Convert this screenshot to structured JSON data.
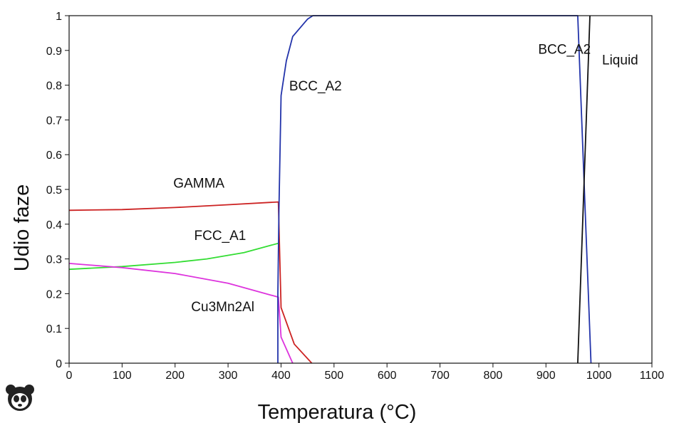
{
  "chart_data": {
    "type": "line",
    "title": "",
    "xlabel": "Temperatura (°C)",
    "ylabel": "Udio faze",
    "xlim": [
      0,
      1100
    ],
    "ylim": [
      0,
      1
    ],
    "x_ticks": [
      0,
      100,
      200,
      300,
      400,
      500,
      600,
      700,
      800,
      900,
      1000,
      1100
    ],
    "y_ticks": [
      0,
      0.1,
      0.2,
      0.3,
      0.4,
      0.5,
      0.6,
      0.7,
      0.8,
      0.9,
      1
    ],
    "grid": false,
    "series": [
      {
        "name": "GAMMA",
        "color": "#cc2222",
        "points": [
          [
            0,
            0.44
          ],
          [
            100,
            0.442
          ],
          [
            200,
            0.448
          ],
          [
            300,
            0.456
          ],
          [
            395,
            0.464
          ],
          [
            400,
            0.16
          ],
          [
            425,
            0.055
          ],
          [
            458,
            0
          ]
        ]
      },
      {
        "name": "FCC_A1",
        "color": "#33dd33",
        "points": [
          [
            0,
            0.27
          ],
          [
            100,
            0.278
          ],
          [
            200,
            0.29
          ],
          [
            260,
            0.3
          ],
          [
            330,
            0.318
          ],
          [
            395,
            0.345
          ]
        ]
      },
      {
        "name": "Cu3Mn2Al",
        "color": "#dd33dd",
        "points": [
          [
            0,
            0.287
          ],
          [
            100,
            0.275
          ],
          [
            200,
            0.258
          ],
          [
            300,
            0.23
          ],
          [
            395,
            0.19
          ],
          [
            400,
            0.075
          ],
          [
            422,
            0
          ]
        ]
      },
      {
        "name": "BCC_A2",
        "color": "#2233aa",
        "points": [
          [
            394,
            0
          ],
          [
            394,
            0.2
          ],
          [
            396,
            0.44
          ],
          [
            400,
            0.77
          ],
          [
            410,
            0.87
          ],
          [
            422,
            0.94
          ],
          [
            450,
            0.99
          ],
          [
            460,
            1
          ],
          [
            960,
            1
          ],
          [
            985,
            0
          ]
        ]
      },
      {
        "name": "Liquid",
        "color": "#111111",
        "points": [
          [
            960,
            0
          ],
          [
            983,
            1
          ]
        ]
      }
    ],
    "annotations": [
      {
        "text": "GAMMA",
        "x": 245,
        "y": 0.505
      },
      {
        "text": "FCC_A1",
        "x": 285,
        "y": 0.355
      },
      {
        "text": "Cu3Mn2Al",
        "x": 290,
        "y": 0.15
      },
      {
        "text": "BCC_A2",
        "x": 465,
        "y": 0.785
      },
      {
        "text": "BCC_A2",
        "x": 935,
        "y": 0.89
      },
      {
        "text": "Liquid",
        "x": 1040,
        "y": 0.86
      }
    ]
  },
  "logo": {
    "name": "panda-logo"
  }
}
